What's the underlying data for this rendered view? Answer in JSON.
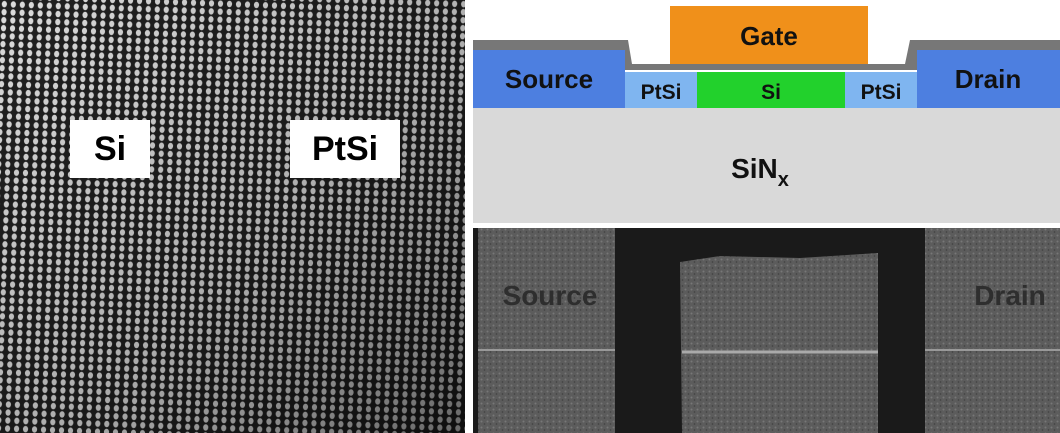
{
  "tem": {
    "labels": [
      "Si",
      "PtSi"
    ]
  },
  "schematic": {
    "gate": "Gate",
    "source": "Source",
    "drain": "Drain",
    "channel": [
      "PtSi",
      "Si",
      "PtSi"
    ],
    "substrate": {
      "base": "SiN",
      "subscript": "x"
    }
  },
  "sem": {
    "labels": [
      "Source",
      "Drain"
    ]
  }
}
